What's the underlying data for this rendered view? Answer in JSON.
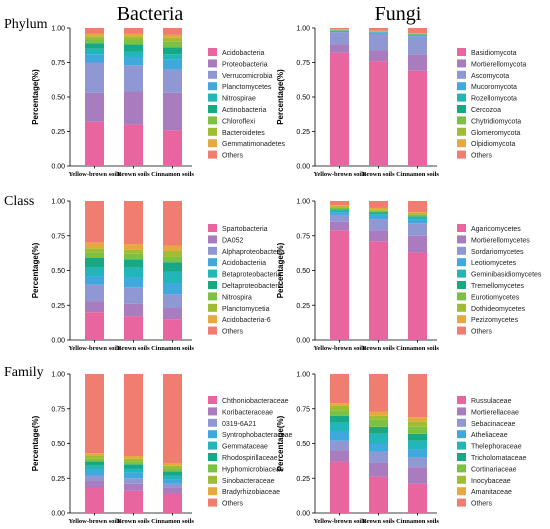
{
  "column_titles": [
    "Bacteria",
    "Fungi"
  ],
  "row_titles": [
    "Phylum",
    "Class",
    "Family"
  ],
  "colors": [
    "#e8659f",
    "#a97bbf",
    "#8f98d3",
    "#3fa9de",
    "#22b5b9",
    "#17a885",
    "#7cc242",
    "#9fbc33",
    "#e7a83e",
    "#ef7d70"
  ],
  "chart_data": [
    {
      "id": "bacteria-phylum",
      "type": "bar",
      "stacked": true,
      "categories": [
        "Yellow-brown soils",
        "Brown soils",
        "Cinnamon soils"
      ],
      "ylabel": "Percentage(%)",
      "ylim": [
        0,
        1.0
      ],
      "yticks": [
        "0.00",
        "0.25",
        "0.50",
        "0.75",
        "1.00"
      ],
      "series": [
        {
          "name": "Acidobacteria",
          "values": [
            0.32,
            0.3,
            0.26
          ]
        },
        {
          "name": "Proteobacteria",
          "values": [
            0.21,
            0.24,
            0.27
          ]
        },
        {
          "name": "Verrucomicrobia",
          "values": [
            0.22,
            0.19,
            0.17
          ]
        },
        {
          "name": "Planctomycetes",
          "values": [
            0.06,
            0.06,
            0.07
          ]
        },
        {
          "name": "Nitrospirae",
          "values": [
            0.04,
            0.04,
            0.04
          ]
        },
        {
          "name": "Actinobacteria",
          "values": [
            0.04,
            0.05,
            0.05
          ]
        },
        {
          "name": "Chloroflexi",
          "values": [
            0.03,
            0.04,
            0.04
          ]
        },
        {
          "name": "Bacteroidetes",
          "values": [
            0.02,
            0.02,
            0.03
          ]
        },
        {
          "name": "Gemmatimonadetes",
          "values": [
            0.02,
            0.02,
            0.02
          ]
        },
        {
          "name": "Others",
          "values": [
            0.04,
            0.04,
            0.05
          ]
        }
      ]
    },
    {
      "id": "fungi-phylum",
      "type": "bar",
      "stacked": true,
      "categories": [
        "Yellow-brown soils",
        "Brown soils",
        "Cinnamon soils"
      ],
      "ylabel": "Percentage(%)",
      "ylim": [
        0,
        1.0
      ],
      "yticks": [
        "0.00",
        "0.25",
        "0.50",
        "0.75",
        "1.00"
      ],
      "series": [
        {
          "name": "Basidiomycota",
          "values": [
            0.82,
            0.76,
            0.69
          ]
        },
        {
          "name": "Mortierellomycota",
          "values": [
            0.06,
            0.08,
            0.12
          ]
        },
        {
          "name": "Ascomycota",
          "values": [
            0.09,
            0.12,
            0.13
          ]
        },
        {
          "name": "Mucoromycota",
          "values": [
            0.005,
            0.005,
            0.005
          ]
        },
        {
          "name": "Rozellomycota",
          "values": [
            0.005,
            0.005,
            0.005
          ]
        },
        {
          "name": "Cercozoa",
          "values": [
            0.003,
            0.003,
            0.003
          ]
        },
        {
          "name": "Chytridiomycota",
          "values": [
            0.003,
            0.003,
            0.003
          ]
        },
        {
          "name": "Glomeromycota",
          "values": [
            0.003,
            0.003,
            0.003
          ]
        },
        {
          "name": "Olpidiomycota",
          "values": [
            0.002,
            0.002,
            0.002
          ]
        },
        {
          "name": "Others",
          "values": [
            0.009,
            0.019,
            0.039
          ]
        }
      ]
    },
    {
      "id": "bacteria-class",
      "type": "bar",
      "stacked": true,
      "categories": [
        "Yellow-brown soils",
        "Brown soils",
        "Cinnamon soils"
      ],
      "ylabel": "Percentage(%)",
      "ylim": [
        0,
        1.0
      ],
      "yticks": [
        "0.00",
        "0.25",
        "0.50",
        "0.75",
        "1.00"
      ],
      "series": [
        {
          "name": "Spartobacteria",
          "values": [
            0.2,
            0.17,
            0.15
          ]
        },
        {
          "name": "DA052",
          "values": [
            0.08,
            0.09,
            0.08
          ]
        },
        {
          "name": "Alphaproteobacteria",
          "values": [
            0.12,
            0.12,
            0.1
          ]
        },
        {
          "name": "Acidobacteriia",
          "values": [
            0.06,
            0.07,
            0.08
          ]
        },
        {
          "name": "Betaproteobacteria",
          "values": [
            0.06,
            0.07,
            0.08
          ]
        },
        {
          "name": "Deltaproteobacteria",
          "values": [
            0.07,
            0.06,
            0.07
          ]
        },
        {
          "name": "Nitrospira",
          "values": [
            0.04,
            0.04,
            0.04
          ]
        },
        {
          "name": "Planctomycetia",
          "values": [
            0.03,
            0.03,
            0.04
          ]
        },
        {
          "name": "Acidobacteria-6",
          "values": [
            0.04,
            0.04,
            0.04
          ]
        },
        {
          "name": "Others",
          "values": [
            0.3,
            0.31,
            0.32
          ]
        }
      ]
    },
    {
      "id": "fungi-class",
      "type": "bar",
      "stacked": true,
      "categories": [
        "Yellow-brown soils",
        "Brown soils",
        "Cinnamon soils"
      ],
      "ylabel": "Percentage(%)",
      "ylim": [
        0,
        1.0
      ],
      "yticks": [
        "0.00",
        "0.25",
        "0.50",
        "0.75",
        "1.00"
      ],
      "series": [
        {
          "name": "Agaricomycetes",
          "values": [
            0.79,
            0.71,
            0.63
          ]
        },
        {
          "name": "Mortierellomycetes",
          "values": [
            0.06,
            0.08,
            0.12
          ]
        },
        {
          "name": "Sordariomycetes",
          "values": [
            0.05,
            0.08,
            0.09
          ]
        },
        {
          "name": "Leotiomycetes",
          "values": [
            0.02,
            0.03,
            0.03
          ]
        },
        {
          "name": "Geminibasidiomycetes",
          "values": [
            0.01,
            0.01,
            0.01
          ]
        },
        {
          "name": "Tremellomycetes",
          "values": [
            0.01,
            0.01,
            0.01
          ]
        },
        {
          "name": "Eurotiomycetes",
          "values": [
            0.01,
            0.01,
            0.01
          ]
        },
        {
          "name": "Dothideomycetes",
          "values": [
            0.01,
            0.01,
            0.01
          ]
        },
        {
          "name": "Pezizomycetes",
          "values": [
            0.01,
            0.01,
            0.01
          ]
        },
        {
          "name": "Others",
          "values": [
            0.03,
            0.05,
            0.08
          ]
        }
      ]
    },
    {
      "id": "bacteria-family",
      "type": "bar",
      "stacked": true,
      "categories": [
        "Yellow-brown soils",
        "Brown soils",
        "Cinnamon soils"
      ],
      "ylabel": "Percentage(%)",
      "ylim": [
        0,
        1.0
      ],
      "yticks": [
        "0.00",
        "0.25",
        "0.50",
        "0.75",
        "1.00"
      ],
      "series": [
        {
          "name": "Chthoniobacteraceae",
          "values": [
            0.18,
            0.16,
            0.14
          ]
        },
        {
          "name": "Koribacteraceae",
          "values": [
            0.05,
            0.05,
            0.04
          ]
        },
        {
          "name": "0319-6A21",
          "values": [
            0.04,
            0.04,
            0.03
          ]
        },
        {
          "name": "Syntrophobacteraceae",
          "values": [
            0.04,
            0.04,
            0.03
          ]
        },
        {
          "name": "Gemmataceae",
          "values": [
            0.03,
            0.03,
            0.03
          ]
        },
        {
          "name": "Rhodospirillaceae",
          "values": [
            0.03,
            0.03,
            0.03
          ]
        },
        {
          "name": "Hyphomicrobiaceae",
          "values": [
            0.02,
            0.02,
            0.02
          ]
        },
        {
          "name": "Sinobacteraceae",
          "values": [
            0.02,
            0.02,
            0.02
          ]
        },
        {
          "name": "Bradyrhizobiaceae",
          "values": [
            0.02,
            0.02,
            0.02
          ]
        },
        {
          "name": "Others",
          "values": [
            0.57,
            0.59,
            0.64
          ]
        }
      ]
    },
    {
      "id": "fungi-family",
      "type": "bar",
      "stacked": true,
      "categories": [
        "Yellow-brown soils",
        "Brown soils",
        "Cinnamon soils"
      ],
      "ylabel": "Percentage(%)",
      "ylim": [
        0,
        1.0
      ],
      "yticks": [
        "0.00",
        "0.25",
        "0.50",
        "0.75",
        "1.00"
      ],
      "series": [
        {
          "name": "Russulaceae",
          "values": [
            0.37,
            0.26,
            0.21
          ]
        },
        {
          "name": "Mortierellaceae",
          "values": [
            0.08,
            0.1,
            0.12
          ]
        },
        {
          "name": "Sebacinaceae",
          "values": [
            0.07,
            0.08,
            0.07
          ]
        },
        {
          "name": "Atheliaceae",
          "values": [
            0.07,
            0.06,
            0.06
          ]
        },
        {
          "name": "Thelephoraceae",
          "values": [
            0.06,
            0.07,
            0.06
          ]
        },
        {
          "name": "Tricholomataceae",
          "values": [
            0.05,
            0.05,
            0.05
          ]
        },
        {
          "name": "Cortinariaceae",
          "values": [
            0.04,
            0.05,
            0.05
          ]
        },
        {
          "name": "Inocybaceae",
          "values": [
            0.03,
            0.03,
            0.04
          ]
        },
        {
          "name": "Amanitaceae",
          "values": [
            0.02,
            0.03,
            0.03
          ]
        },
        {
          "name": "Others",
          "values": [
            0.21,
            0.27,
            0.31
          ]
        }
      ]
    }
  ]
}
